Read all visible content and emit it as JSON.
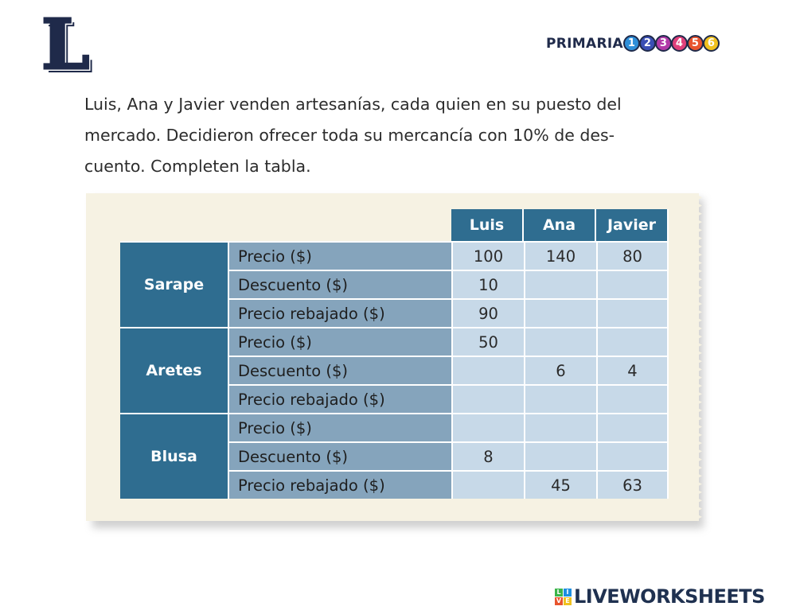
{
  "logo": {
    "letter": "L"
  },
  "brand": {
    "word": "PRIMARIA",
    "grades": [
      {
        "num": "1",
        "color": "#2f8fd8"
      },
      {
        "num": "2",
        "color": "#3a4fb5"
      },
      {
        "num": "3",
        "color": "#b23aa8"
      },
      {
        "num": "4",
        "color": "#e0407a"
      },
      {
        "num": "5",
        "color": "#e8542e"
      },
      {
        "num": "6",
        "color": "#f0c11e"
      }
    ]
  },
  "paragraph": {
    "line1": "Luis, Ana y Javier venden artesanías, cada quien en su puesto del",
    "line2": "mercado. Decidieron ofrecer toda su mercancía con 10% de des-",
    "line3": "cuento. Completen la tabla."
  },
  "table": {
    "columns": [
      "Luis",
      "Ana",
      "Javier"
    ],
    "groups": [
      {
        "name": "Sarape",
        "rows": [
          {
            "label": "Precio ($)",
            "values": [
              "100",
              "140",
              "80"
            ]
          },
          {
            "label": "Descuento ($)",
            "values": [
              "10",
              "",
              ""
            ]
          },
          {
            "label": "Precio rebajado ($)",
            "values": [
              "90",
              "",
              ""
            ]
          }
        ]
      },
      {
        "name": "Aretes",
        "rows": [
          {
            "label": "Precio ($)",
            "values": [
              "50",
              "",
              ""
            ]
          },
          {
            "label": "Descuento ($)",
            "values": [
              "",
              "6",
              "4"
            ]
          },
          {
            "label": "Precio rebajado ($)",
            "values": [
              "",
              "",
              ""
            ]
          }
        ]
      },
      {
        "name": "Blusa",
        "rows": [
          {
            "label": "Precio ($)",
            "values": [
              "",
              "",
              ""
            ]
          },
          {
            "label": "Descuento ($)",
            "values": [
              "8",
              "",
              ""
            ]
          },
          {
            "label": "Precio rebajado ($)",
            "values": [
              "",
              "45",
              "63"
            ]
          }
        ]
      }
    ]
  },
  "footer": {
    "badge": [
      "L",
      "I",
      "V",
      "E"
    ],
    "text": "LIVEWORKSHEETS"
  },
  "colors": {
    "header_blue": "#2f6d90",
    "label_blue": "#85a4bc",
    "cell_blue": "#c7d9e8",
    "card_bg": "#f6f2e3",
    "navy": "#1f2a4a"
  }
}
